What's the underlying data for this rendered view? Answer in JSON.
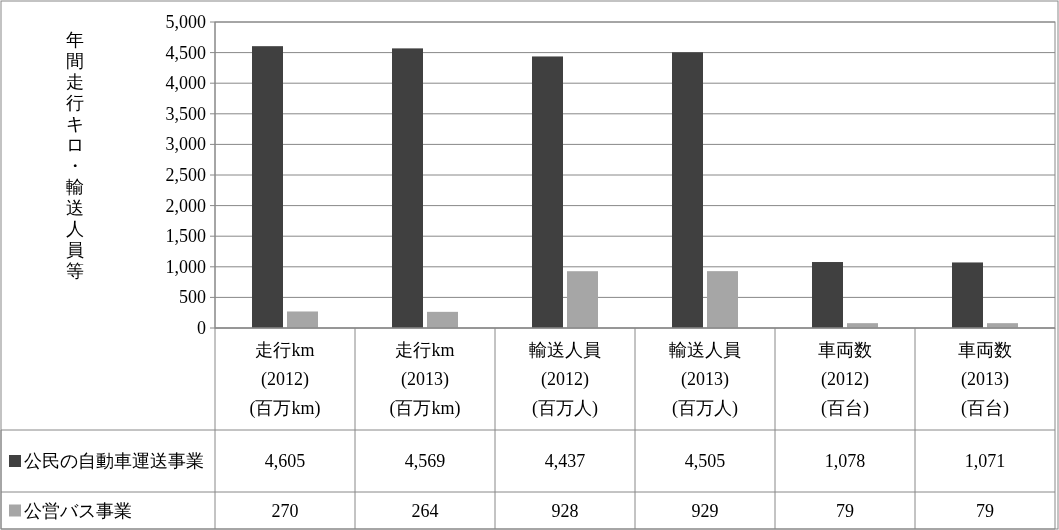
{
  "chart_data": {
    "type": "bar",
    "ylabel": "年間走行キロ・輸送人員等",
    "categories": [
      "走行km\n(2012)\n(百万km)",
      "走行km\n(2013)\n(百万km)",
      "輸送人員\n(2012)\n(百万人)",
      "輸送人員\n(2013)\n(百万人)",
      "車両数\n(2012)\n(百台)",
      "車両数\n(2013)\n(百台)"
    ],
    "series": [
      {
        "name": "公民の自動車運送事業",
        "color": "#404040",
        "values": [
          4605,
          4569,
          4437,
          4505,
          1078,
          1071
        ],
        "value_labels": [
          "4,605",
          "4,569",
          "4,437",
          "4,505",
          "1,078",
          "1,071"
        ]
      },
      {
        "name": "公営バス事業",
        "color": "#a6a6a6",
        "values": [
          270,
          264,
          928,
          929,
          79,
          79
        ],
        "value_labels": [
          "270",
          "264",
          "928",
          "929",
          "79",
          "79"
        ]
      }
    ],
    "ylim": [
      0,
      5000
    ],
    "yticks": [
      {
        "value": 0,
        "label": "0"
      },
      {
        "value": 500,
        "label": "500"
      },
      {
        "value": 1000,
        "label": "1,000"
      },
      {
        "value": 1500,
        "label": "1,500"
      },
      {
        "value": 2000,
        "label": "2,000"
      },
      {
        "value": 2500,
        "label": "2,500"
      },
      {
        "value": 3000,
        "label": "3,000"
      },
      {
        "value": 3500,
        "label": "3,500"
      },
      {
        "value": 4000,
        "label": "4,000"
      },
      {
        "value": 4500,
        "label": "4,500"
      },
      {
        "value": 5000,
        "label": "5,000"
      }
    ],
    "grid": "y",
    "legend": "bottom"
  }
}
